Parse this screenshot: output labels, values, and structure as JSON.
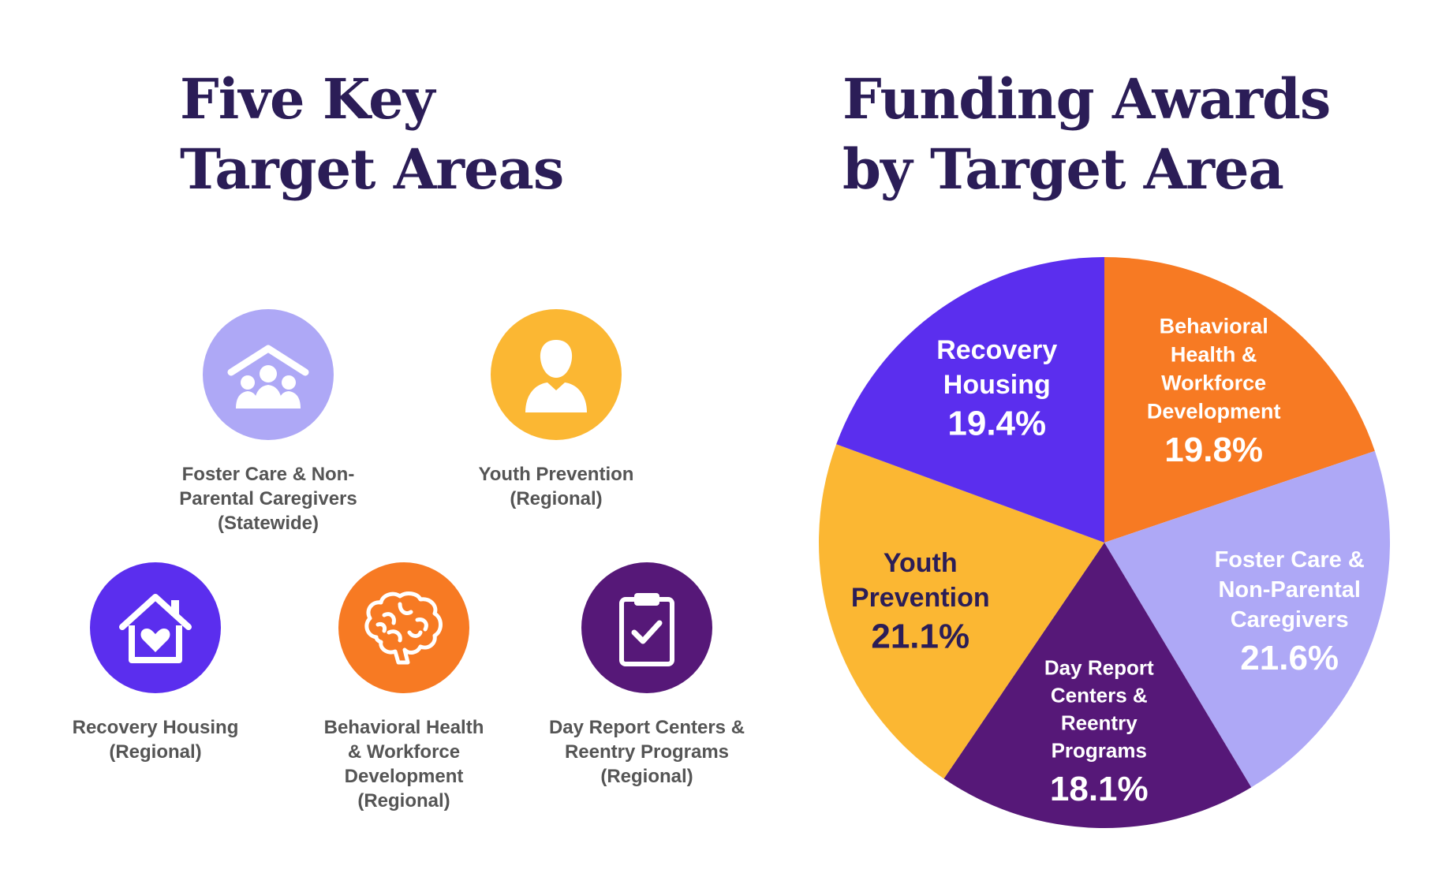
{
  "left_title": [
    "Five Key",
    "Target Areas"
  ],
  "right_title": [
    "Funding Awards",
    "by Target Area"
  ],
  "target_areas": [
    {
      "icon": "family-home-icon",
      "color": "#aea8f6",
      "label": [
        "Foster Care & Non-",
        "Parental Caregivers",
        "(Statewide)"
      ]
    },
    {
      "icon": "person-icon",
      "color": "#fbb733",
      "label": [
        "Youth Prevention",
        "(Regional)"
      ]
    },
    {
      "icon": "house-heart-icon",
      "color": "#5b2eee",
      "label": [
        "Recovery Housing",
        "(Regional)"
      ]
    },
    {
      "icon": "brain-icon",
      "color": "#f77a23",
      "label": [
        "Behavioral Health",
        "& Workforce",
        "Development",
        "(Regional)"
      ]
    },
    {
      "icon": "clipboard-check-icon",
      "color": "#561878",
      "label": [
        "Day Report Centers &",
        "Reentry Programs",
        "(Regional)"
      ]
    }
  ],
  "colors": {
    "title": "#2b1d57",
    "label_text": "#555555",
    "recovery_housing": "#5b2eee",
    "behavioral_health": "#f77a23",
    "foster_care": "#aea8f6",
    "day_report": "#561878",
    "youth_prevention": "#fbb733"
  },
  "chart_data": {
    "type": "pie",
    "title": "Funding Awards by Target Area",
    "start_angle_deg": 0,
    "direction": "clockwise",
    "slices": [
      {
        "label_lines": [
          "Behavioral",
          "Health &",
          "Workforce",
          "Development"
        ],
        "value": 19.8,
        "value_text": "19.8%",
        "color": "#f77a23",
        "text_color": "#ffffff"
      },
      {
        "label_lines": [
          "Foster Care &",
          "Non-Parental",
          "Caregivers"
        ],
        "value": 21.6,
        "value_text": "21.6%",
        "color": "#aea8f6",
        "text_color": "#ffffff"
      },
      {
        "label_lines": [
          "Day Report",
          "Centers &",
          "Reentry",
          "Programs"
        ],
        "value": 18.1,
        "value_text": "18.1%",
        "color": "#561878",
        "text_color": "#ffffff"
      },
      {
        "label_lines": [
          "Youth",
          "Prevention"
        ],
        "value": 21.1,
        "value_text": "21.1%",
        "color": "#fbb733",
        "text_color": "#2b1d57"
      },
      {
        "label_lines": [
          "Recovery",
          "Housing"
        ],
        "value": 19.4,
        "value_text": "19.4%",
        "color": "#5b2eee",
        "text_color": "#ffffff"
      }
    ]
  }
}
